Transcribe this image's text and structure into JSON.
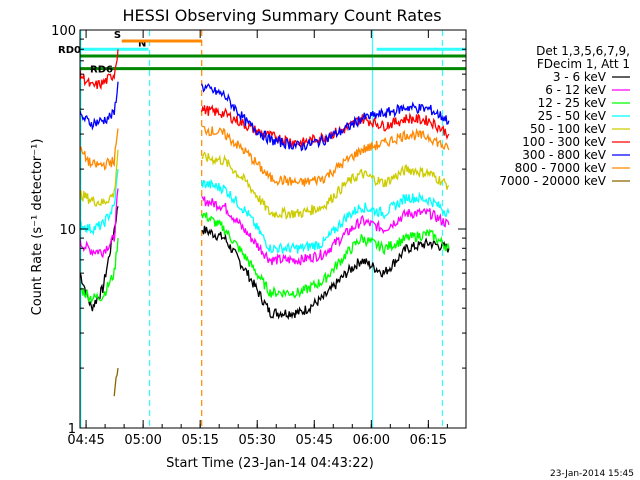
{
  "chart_data": {
    "type": "line",
    "title": "HESSI Observing Summary Count Rates",
    "xlabel": "Start Time (23-Jan-14 04:43:22)",
    "ylabel": "Count Rate (s⁻¹ detector⁻¹)",
    "y_scale": "log",
    "ylim": [
      1,
      100
    ],
    "x_units": "minutes after 04:43:22",
    "xlim": [
      0,
      101.5
    ],
    "x_ticks": [
      {
        "label": "04:45",
        "t": 1.6
      },
      {
        "label": "05:00",
        "t": 16.6
      },
      {
        "label": "05:15",
        "t": 31.6
      },
      {
        "label": "05:30",
        "t": 46.6
      },
      {
        "label": "05:45",
        "t": 61.6
      },
      {
        "label": "06:00",
        "t": 76.6
      },
      {
        "label": "06:15",
        "t": 91.6
      }
    ],
    "y_ticks": [
      {
        "label": "1",
        "v": 1
      },
      {
        "label": "10",
        "v": 10
      },
      {
        "label": "100",
        "v": 100
      }
    ],
    "legend_title": [
      "Det 1,3,5,6,7,9,",
      "FDecim 1, Att 1"
    ],
    "legend_placement": "right",
    "series": [
      {
        "name": "3 - 6 keV",
        "color": "#000000",
        "values": [
          [
            0,
            6
          ],
          [
            3,
            4
          ],
          [
            6,
            5
          ],
          [
            9,
            10
          ],
          [
            10,
            13
          ],
          [
            30,
            null
          ],
          [
            32,
            10
          ],
          [
            38,
            9
          ],
          [
            44,
            6
          ],
          [
            50,
            3.8
          ],
          [
            58,
            3.8
          ],
          [
            64,
            4.5
          ],
          [
            70,
            6
          ],
          [
            74,
            7
          ],
          [
            80,
            6
          ],
          [
            86,
            8
          ],
          [
            92,
            8.5
          ],
          [
            97,
            8
          ]
        ]
      },
      {
        "name": "6 - 12 keV",
        "color": "#ff00ff",
        "values": [
          [
            0,
            8.5
          ],
          [
            3,
            7.8
          ],
          [
            6,
            7.7
          ],
          [
            9,
            9
          ],
          [
            10,
            16
          ],
          [
            30,
            null
          ],
          [
            32,
            14
          ],
          [
            38,
            13
          ],
          [
            44,
            9.5
          ],
          [
            50,
            7
          ],
          [
            58,
            7
          ],
          [
            64,
            7.5
          ],
          [
            70,
            9.5
          ],
          [
            74,
            11
          ],
          [
            80,
            10
          ],
          [
            86,
            12
          ],
          [
            92,
            12
          ],
          [
            97,
            10.5
          ]
        ]
      },
      {
        "name": "12 - 25 keV",
        "color": "#00ff00",
        "values": [
          [
            0,
            5
          ],
          [
            3,
            4.5
          ],
          [
            6,
            4.6
          ],
          [
            9,
            6
          ],
          [
            10,
            9
          ],
          [
            30,
            null
          ],
          [
            32,
            12
          ],
          [
            38,
            10
          ],
          [
            44,
            7
          ],
          [
            50,
            4.8
          ],
          [
            58,
            4.8
          ],
          [
            64,
            5.5
          ],
          [
            70,
            7.5
          ],
          [
            74,
            9
          ],
          [
            80,
            8
          ],
          [
            86,
            9
          ],
          [
            92,
            9.5
          ],
          [
            97,
            8
          ]
        ]
      },
      {
        "name": "25 - 50 keV",
        "color": "#00ffff",
        "values": [
          [
            0,
            10.5
          ],
          [
            3,
            10
          ],
          [
            6,
            10.5
          ],
          [
            9,
            13
          ],
          [
            10,
            20
          ],
          [
            30,
            null
          ],
          [
            32,
            17
          ],
          [
            38,
            16
          ],
          [
            44,
            12
          ],
          [
            50,
            8
          ],
          [
            58,
            8
          ],
          [
            64,
            8.5
          ],
          [
            70,
            11.5
          ],
          [
            74,
            13
          ],
          [
            80,
            12
          ],
          [
            86,
            14.5
          ],
          [
            92,
            14
          ],
          [
            97,
            12
          ]
        ]
      },
      {
        "name": "50 - 100 keV",
        "color": "#cccc00",
        "values": [
          [
            0,
            15
          ],
          [
            3,
            14
          ],
          [
            6,
            13.5
          ],
          [
            9,
            15
          ],
          [
            10,
            25
          ],
          [
            30,
            null
          ],
          [
            32,
            23
          ],
          [
            38,
            22
          ],
          [
            44,
            17
          ],
          [
            50,
            12
          ],
          [
            58,
            12
          ],
          [
            64,
            13
          ],
          [
            70,
            17
          ],
          [
            74,
            19
          ],
          [
            80,
            17
          ],
          [
            86,
            20
          ],
          [
            92,
            19
          ],
          [
            97,
            16.5
          ]
        ]
      },
      {
        "name": "100 - 300 keV",
        "color": "#ff0000",
        "values": [
          [
            0,
            60
          ],
          [
            3,
            52
          ],
          [
            6,
            54
          ],
          [
            9,
            60
          ],
          [
            10,
            80
          ],
          [
            30,
            null
          ],
          [
            32,
            40
          ],
          [
            38,
            38
          ],
          [
            44,
            33
          ],
          [
            48,
            30
          ],
          [
            58,
            27
          ],
          [
            64,
            29
          ],
          [
            70,
            32
          ],
          [
            74,
            36
          ],
          [
            80,
            33
          ],
          [
            86,
            36
          ],
          [
            92,
            35
          ],
          [
            97,
            30
          ]
        ]
      },
      {
        "name": "300 - 800 keV",
        "color": "#0000ff",
        "values": [
          [
            0,
            37
          ],
          [
            3,
            34
          ],
          [
            6,
            35
          ],
          [
            9,
            38
          ],
          [
            10,
            55
          ],
          [
            30,
            null
          ],
          [
            32,
            52
          ],
          [
            38,
            47
          ],
          [
            44,
            34
          ],
          [
            48,
            30
          ],
          [
            50,
            28
          ],
          [
            58,
            26
          ],
          [
            64,
            28
          ],
          [
            70,
            32
          ],
          [
            74,
            36
          ],
          [
            80,
            38
          ],
          [
            86,
            41
          ],
          [
            92,
            40
          ],
          [
            97,
            35
          ]
        ]
      },
      {
        "name": "800 - 7000 keV",
        "color": "#ff8800",
        "values": [
          [
            0,
            25
          ],
          [
            3,
            21
          ],
          [
            6,
            21
          ],
          [
            9,
            22
          ],
          [
            10,
            32
          ],
          [
            30,
            null
          ],
          [
            32,
            32
          ],
          [
            38,
            30
          ],
          [
            44,
            24
          ],
          [
            50,
            18
          ],
          [
            58,
            17
          ],
          [
            64,
            18
          ],
          [
            70,
            22
          ],
          [
            74,
            25
          ],
          [
            80,
            27
          ],
          [
            86,
            30
          ],
          [
            92,
            29
          ],
          [
            97,
            25
          ]
        ]
      },
      {
        "name": "7000 - 20000 keV",
        "color": "#886600",
        "values": [
          [
            9,
            1.5
          ],
          [
            10,
            2
          ]
        ]
      }
    ],
    "orbit_flags": [
      {
        "label": "S",
        "color": "#ff8800",
        "t_start": 11,
        "t_end": 32,
        "v": 88
      },
      {
        "label": "N",
        "color": "#33ffff",
        "t_start": 0,
        "t_end": 18,
        "v": 80
      },
      {
        "label": "RD0",
        "color": "#008800",
        "t_start": 0,
        "t_end": 32,
        "v": 74
      },
      {
        "label": "RD6",
        "color": "#008800",
        "t_start": 0,
        "t_end": 32,
        "v": 64
      },
      {
        "label": "",
        "color": "#ff8800",
        "t_start": 11,
        "t_end": 32,
        "v": 88
      },
      {
        "label": "",
        "color": "#33ffff",
        "t_start": 78,
        "t_end": 101.5,
        "v": 80
      },
      {
        "label": "",
        "color": "#008800",
        "t_start": 32,
        "t_end": 101.5,
        "v": 74
      },
      {
        "label": "",
        "color": "#008800",
        "t_start": 32,
        "t_end": 101.5,
        "v": 64
      }
    ],
    "vertical_markers": [
      {
        "t": 0.2,
        "color": "#33ffff",
        "style": "solid"
      },
      {
        "t": 18.3,
        "color": "#33ffff",
        "style": "dashed"
      },
      {
        "t": 32.0,
        "color": "#ff8800",
        "style": "dashed"
      },
      {
        "t": 76.9,
        "color": "#33ffff",
        "style": "solid"
      },
      {
        "t": 95.3,
        "color": "#33ffff",
        "style": "dashed"
      }
    ]
  },
  "footer": {
    "date_stamp": "23-Jan-2014 15:45"
  }
}
